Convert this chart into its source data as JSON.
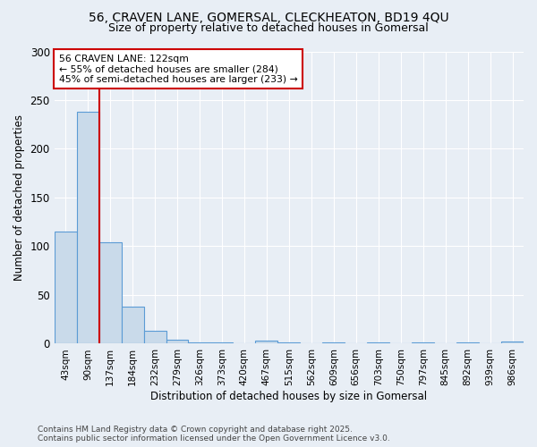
{
  "title_line1": "56, CRAVEN LANE, GOMERSAL, CLECKHEATON, BD19 4QU",
  "title_line2": "Size of property relative to detached houses in Gomersal",
  "xlabel": "Distribution of detached houses by size in Gomersal",
  "ylabel": "Number of detached properties",
  "categories": [
    "43sqm",
    "90sqm",
    "137sqm",
    "184sqm",
    "232sqm",
    "279sqm",
    "326sqm",
    "373sqm",
    "420sqm",
    "467sqm",
    "515sqm",
    "562sqm",
    "609sqm",
    "656sqm",
    "703sqm",
    "750sqm",
    "797sqm",
    "845sqm",
    "892sqm",
    "939sqm",
    "986sqm"
  ],
  "values": [
    115,
    238,
    104,
    38,
    13,
    4,
    1,
    1,
    0,
    3,
    1,
    0,
    1,
    0,
    1,
    0,
    1,
    0,
    1,
    0,
    2
  ],
  "bar_color": "#c9daea",
  "bar_edge_color": "#5b9bd5",
  "annotation_line1": "56 CRAVEN LANE: 122sqm",
  "annotation_line2": "← 55% of detached houses are smaller (284)",
  "annotation_line3": "45% of semi-detached houses are larger (233) →",
  "annotation_box_color": "#ffffff",
  "annotation_box_edge_color": "#cc0000",
  "vline_color": "#cc0000",
  "ylim": [
    0,
    300
  ],
  "yticks": [
    0,
    50,
    100,
    150,
    200,
    250,
    300
  ],
  "footnote_line1": "Contains HM Land Registry data © Crown copyright and database right 2025.",
  "footnote_line2": "Contains public sector information licensed under the Open Government Licence v3.0.",
  "bg_color": "#e8eef5",
  "plot_bg_color": "#e8eef5",
  "grid_color": "#ffffff",
  "font_family": "DejaVu Sans"
}
